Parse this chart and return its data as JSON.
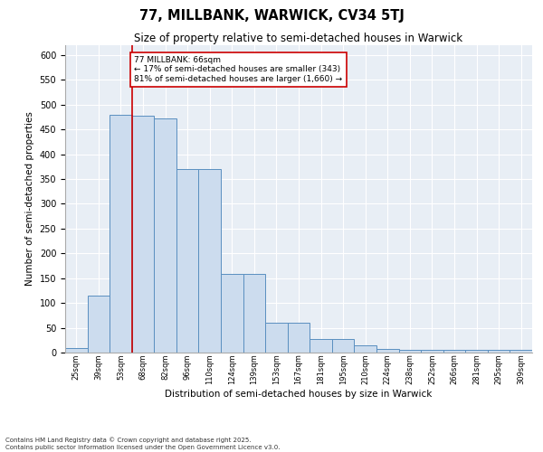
{
  "title": "77, MILLBANK, WARWICK, CV34 5TJ",
  "subtitle": "Size of property relative to semi-detached houses in Warwick",
  "xlabel": "Distribution of semi-detached houses by size in Warwick",
  "ylabel": "Number of semi-detached properties",
  "categories": [
    "25sqm",
    "39sqm",
    "53sqm",
    "68sqm",
    "82sqm",
    "96sqm",
    "110sqm",
    "124sqm",
    "139sqm",
    "153sqm",
    "167sqm",
    "181sqm",
    "195sqm",
    "210sqm",
    "224sqm",
    "238sqm",
    "252sqm",
    "266sqm",
    "281sqm",
    "295sqm",
    "309sqm"
  ],
  "values": [
    10,
    115,
    480,
    478,
    473,
    370,
    370,
    158,
    158,
    60,
    60,
    28,
    28,
    15,
    8,
    5,
    5,
    5,
    5,
    6,
    5
  ],
  "bar_color": "#ccdcee",
  "bar_edge_color": "#5a8fc0",
  "annotation_text": "77 MILLBANK: 66sqm\n← 17% of semi-detached houses are smaller (343)\n81% of semi-detached houses are larger (1,660) →",
  "vline_x_idx": 3,
  "vline_color": "#cc0000",
  "annotation_box_edge": "#cc0000",
  "background_color": "#e8eef5",
  "footer_line1": "Contains HM Land Registry data © Crown copyright and database right 2025.",
  "footer_line2": "Contains public sector information licensed under the Open Government Licence v3.0.",
  "ylim": [
    0,
    620
  ],
  "yticks": [
    0,
    50,
    100,
    150,
    200,
    250,
    300,
    350,
    400,
    450,
    500,
    550,
    600
  ]
}
